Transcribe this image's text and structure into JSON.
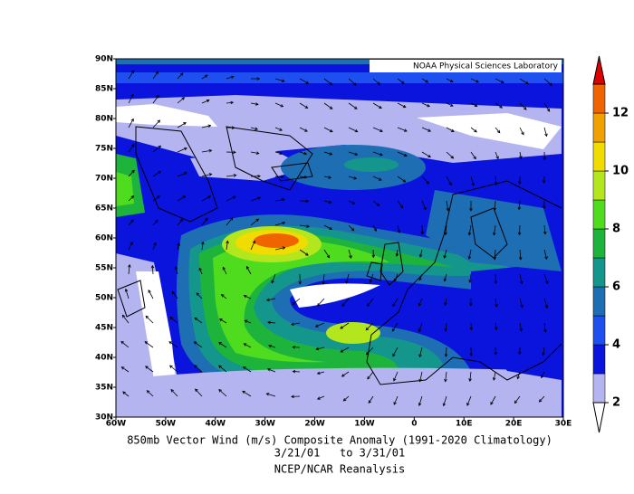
{
  "credit": "NOAA Physical Sciences Laboratory",
  "lat_labels": [
    "90N",
    "85N",
    "80N",
    "75N",
    "70N",
    "65N",
    "60N",
    "55N",
    "50N",
    "45N",
    "40N",
    "35N",
    "30N"
  ],
  "lon_labels": [
    "60W",
    "50W",
    "40W",
    "30W",
    "20W",
    "10W",
    "0",
    "10E",
    "20E",
    "30E"
  ],
  "caption": {
    "title": "850mb Vector Wind (m/s) Composite Anomaly (1991-2020 Climatology)",
    "dates": "3/21/01   to 3/31/01",
    "source": "NCEP/NCAR Reanalysis"
  },
  "colorbar": {
    "levels": [
      2,
      3,
      4,
      5,
      6,
      7,
      8,
      9,
      10,
      11,
      12,
      13
    ],
    "colors": [
      "#b4b4f0",
      "#0a14dc",
      "#1e50f0",
      "#1e6eb4",
      "#14968c",
      "#1eb43c",
      "#50dc1e",
      "#b4e61e",
      "#f0dc00",
      "#f0a000",
      "#f06400"
    ],
    "over_color": "#e00000",
    "under_color": "#ffffff",
    "ticks": [
      2,
      4,
      6,
      8,
      10,
      12
    ]
  }
}
